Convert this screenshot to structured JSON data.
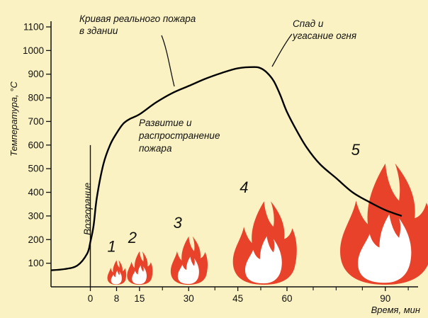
{
  "chart_data": {
    "type": "line",
    "ylabel": "Температура, °С",
    "xlabel": "Время, мин",
    "ylim": [
      0,
      1100
    ],
    "yticks": [
      100,
      200,
      300,
      400,
      500,
      600,
      700,
      800,
      900,
      1000,
      1100
    ],
    "xlim": [
      -12,
      100
    ],
    "xticks": [
      0,
      8,
      15,
      30,
      45,
      60,
      90
    ],
    "xtick_labels": [
      "0",
      "8",
      "15",
      "30",
      "45",
      "60",
      "90"
    ],
    "xtick_minor": [
      22,
      38,
      52,
      68,
      75,
      83,
      97
    ],
    "series": [
      {
        "name": "",
        "color": "#000000",
        "x": [
          -12,
          -8,
          -4,
          -1,
          0,
          1,
          2,
          4,
          6,
          8,
          10,
          12,
          15,
          20,
          25,
          30,
          35,
          40,
          45,
          50,
          52,
          54,
          56,
          58,
          60,
          63,
          66,
          70,
          75,
          80,
          85,
          90,
          95
        ],
        "y": [
          70,
          75,
          90,
          140,
          190,
          260,
          380,
          520,
          600,
          650,
          690,
          710,
          730,
          780,
          820,
          850,
          880,
          905,
          925,
          930,
          925,
          905,
          870,
          810,
          740,
          660,
          590,
          520,
          460,
          400,
          360,
          325,
          300
        ]
      }
    ],
    "ignition_line_x": 0,
    "ignition_line_top": 600,
    "annotations": [
      {
        "lines": [
          "Кривая реального пожара",
          "в здании"
        ],
        "pointer": "curve"
      },
      {
        "lines": [
          "Спад и",
          "угасание огня"
        ],
        "pointer": "curve"
      },
      {
        "lines": [
          "Развитие и",
          "распространение",
          "пожара"
        ]
      },
      {
        "lines": [
          "Возгорание"
        ],
        "vertical": true
      }
    ],
    "stages": [
      {
        "label": "1",
        "x": 8,
        "scale": 0.28
      },
      {
        "label": "2",
        "x": 15,
        "scale": 0.38
      },
      {
        "label": "3",
        "x": 30,
        "scale": 0.55
      },
      {
        "label": "4",
        "x": 53,
        "scale": 0.95
      },
      {
        "label": "5",
        "x": 90,
        "scale": 1.38
      }
    ],
    "colors": {
      "background": "#faf2c2",
      "flame": "#e8432a",
      "flame_core": "#ffffff",
      "curve": "#000000"
    }
  }
}
